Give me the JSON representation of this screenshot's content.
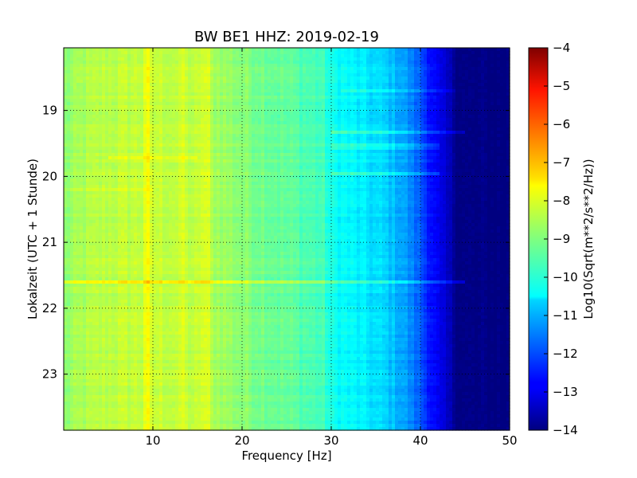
{
  "chart_data": {
    "type": "heatmap",
    "title": "BW BE1 HHZ: 2019-02-19",
    "xlabel": "Frequency [Hz]",
    "ylabel": "Lokalzeit (UTC + 1 Stunde)",
    "xlim": [
      0,
      50
    ],
    "ylim": [
      23.85,
      18.05
    ],
    "x_ticks": [
      10,
      20,
      30,
      40,
      50
    ],
    "y_ticks": [
      19,
      20,
      21,
      22,
      23
    ],
    "grid": true,
    "colormap": "jet",
    "colorbar": {
      "label": "Log10(Sqrt(m**2/s**2/Hz))",
      "range": [
        -14,
        -4
      ],
      "ticks": [
        -4,
        -5,
        -6,
        -7,
        -8,
        -9,
        -10,
        -11,
        -12,
        -13,
        -14
      ]
    },
    "spectrum_profile": {
      "frequency_hz": [
        0,
        2,
        5,
        10,
        15,
        20,
        25,
        29,
        30,
        33,
        36,
        38,
        40,
        42,
        44,
        45,
        50
      ],
      "log_amplitude": [
        -8.9,
        -8.6,
        -8.4,
        -8.3,
        -8.4,
        -8.9,
        -9.3,
        -9.6,
        -10.1,
        -10.4,
        -10.7,
        -11.1,
        -11.9,
        -13.0,
        -13.8,
        -14.0,
        -14.0
      ]
    },
    "features": [
      {
        "type": "horizontal-line",
        "time": 21.6,
        "freq_range": [
          0,
          45
        ],
        "delta": 0.8
      },
      {
        "type": "horizontal-line",
        "time": 19.35,
        "freq_range": [
          30,
          45
        ],
        "delta": 0.6
      },
      {
        "type": "horizontal-line",
        "time": 19.95,
        "freq_range": [
          30,
          42
        ],
        "delta": 0.5
      },
      {
        "type": "horizontal-line",
        "time": 19.55,
        "freq_range": [
          30,
          42
        ],
        "delta": 0.4
      },
      {
        "type": "horizontal-line",
        "time": 18.7,
        "freq_range": [
          31,
          44
        ],
        "delta": 0.4
      },
      {
        "type": "horizontal-line",
        "time": 19.7,
        "freq_range": [
          5,
          15
        ],
        "delta": 0.4
      },
      {
        "type": "horizontal-line",
        "time": 20.2,
        "freq_range": [
          0,
          10
        ],
        "delta": 0.3
      },
      {
        "type": "vertical-line",
        "freq": 9.3,
        "delta": 0.4
      },
      {
        "type": "vertical-line",
        "freq": 13.3,
        "delta": 0.3
      },
      {
        "type": "vertical-line",
        "freq": 15.7,
        "delta": 0.35
      },
      {
        "type": "vertical-line",
        "freq": 16.3,
        "delta": 0.3
      }
    ]
  }
}
